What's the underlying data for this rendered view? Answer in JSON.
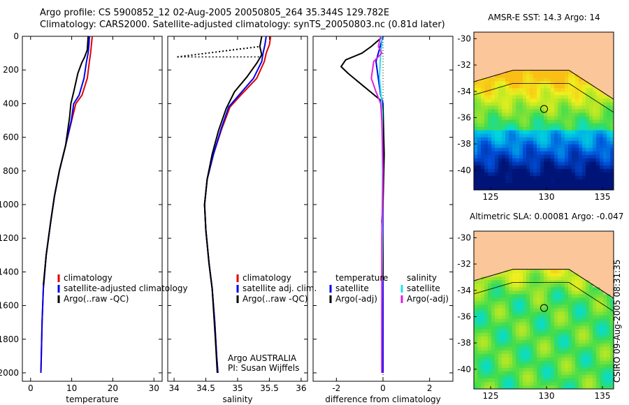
{
  "title_line1": "Argo profile: CS 5900852_12 02-Aug-2005 20050805_264 35.344S 129.782E",
  "title_line2": "Climatology: CARS2000. Satellite-adjusted climatology: synTS_20050803.nc (0.81d later)",
  "credit": "CSIRO 09-Aug-2005 08:31:35",
  "colors": {
    "climatology": "#e00000",
    "satellite": "#0000ee",
    "argo": "#000000",
    "salinity_satellite": "#22e0ee",
    "salinity_argo": "#e020e0",
    "land": "#fbc69a"
  },
  "chart_data": [
    {
      "type": "line",
      "id": "temperature",
      "xlabel": "temperature",
      "ylabel": "",
      "xlim": [
        -2,
        32
      ],
      "ylim": [
        2050,
        0
      ],
      "xticks": [
        "0",
        "10",
        "20",
        "30"
      ],
      "xtick_values": [
        0,
        10,
        20,
        30
      ],
      "yticks": [
        "0",
        "200",
        "400",
        "600",
        "800",
        "1000",
        "1200",
        "1400",
        "1600",
        "1800",
        "2000"
      ],
      "ytick_values": [
        0,
        200,
        400,
        600,
        800,
        1000,
        1200,
        1400,
        1600,
        1800,
        2000
      ],
      "legend": [
        "climatology",
        "satellite-adjusted climatology",
        "Argo(..raw -QC)"
      ],
      "series": [
        {
          "name": "climatology",
          "color": "#e00000",
          "x": [
            15.0,
            14.8,
            14.6,
            14.3,
            13.8,
            12.5,
            11.0,
            10.0,
            8.5,
            7.0,
            5.8,
            4.9,
            3.8,
            3.1,
            2.8,
            2.6,
            2.5
          ],
          "y": [
            0,
            50,
            100,
            150,
            250,
            350,
            400,
            500,
            650,
            800,
            950,
            1100,
            1300,
            1500,
            1700,
            1900,
            2000
          ]
        },
        {
          "name": "satellite-adjusted climatology",
          "color": "#0000ee",
          "x": [
            14.3,
            14.2,
            14.0,
            13.6,
            13.0,
            11.8,
            10.5,
            9.9,
            8.5,
            7.0,
            5.8,
            4.9,
            3.8,
            3.1,
            2.8,
            2.6,
            2.5
          ],
          "y": [
            0,
            50,
            100,
            150,
            250,
            350,
            400,
            500,
            650,
            800,
            950,
            1100,
            1300,
            1500,
            1700,
            1900,
            2000
          ]
        },
        {
          "name": "Argo(..raw -QC)",
          "color": "#000000",
          "x": [
            14.0,
            13.8,
            13.2,
            12.4,
            11.5,
            10.5,
            9.8,
            9.5,
            8.5,
            7.0,
            5.8,
            4.9,
            3.8,
            3.1
          ],
          "y": [
            0,
            80,
            120,
            160,
            220,
            330,
            400,
            480,
            650,
            800,
            950,
            1100,
            1300,
            1480
          ]
        }
      ]
    },
    {
      "type": "line",
      "id": "salinity",
      "xlabel": "salinity",
      "ylabel": "",
      "xlim": [
        33.9,
        36.1
      ],
      "ylim": [
        2050,
        0
      ],
      "xticks": [
        "34",
        "34.5",
        "35",
        "35.5",
        "36"
      ],
      "xtick_values": [
        34,
        34.5,
        35,
        35.5,
        36
      ],
      "legend": [
        "climatology",
        "satellite adj. clim.",
        "Argo(..raw -QC)"
      ],
      "annotations": [
        "Argo AUSTRALIA",
        "PI: Susan Wijffels"
      ],
      "series": [
        {
          "name": "climatology",
          "color": "#e00000",
          "x": [
            35.52,
            35.5,
            35.45,
            35.42,
            35.3,
            35.05,
            34.88,
            34.75,
            34.62,
            34.52,
            34.48,
            34.5,
            34.55,
            34.6,
            34.64,
            34.67,
            34.69
          ],
          "y": [
            0,
            50,
            100,
            150,
            250,
            350,
            420,
            550,
            700,
            850,
            1000,
            1150,
            1350,
            1500,
            1700,
            1900,
            2000
          ]
        },
        {
          "name": "satellite adj. clim.",
          "color": "#0000ee",
          "x": [
            35.45,
            35.43,
            35.4,
            35.38,
            35.25,
            35.02,
            34.86,
            34.74,
            34.62,
            34.52,
            34.48,
            34.5,
            34.55,
            34.6,
            34.64,
            34.67,
            34.69
          ],
          "y": [
            0,
            50,
            100,
            150,
            250,
            350,
            420,
            550,
            700,
            850,
            1000,
            1150,
            1350,
            1500,
            1700,
            1900,
            2000
          ]
        },
        {
          "name": "Argo(..raw -QC)",
          "color": "#000000",
          "x": [
            35.38,
            35.35,
            35.38,
            35.3,
            35.15,
            34.95,
            34.82,
            34.7,
            34.6,
            34.52,
            34.48,
            34.5,
            34.55,
            34.6,
            34.65,
            34.68
          ],
          "y": [
            0,
            60,
            110,
            160,
            240,
            330,
            430,
            560,
            700,
            850,
            1000,
            1150,
            1350,
            1500,
            1800,
            2000
          ]
        }
      ]
    },
    {
      "type": "line",
      "id": "difference",
      "xlabel": "difference from climatology",
      "ylabel": "",
      "xlim": [
        -3,
        3
      ],
      "ylim": [
        2050,
        0
      ],
      "xticks": [
        "-2",
        "0",
        "2"
      ],
      "xtick_values": [
        -2,
        0,
        2
      ],
      "legend_headers": [
        "temperature",
        "salinity"
      ],
      "legend": [
        "satellite",
        "Argo(-adj)",
        "satellite",
        "Argo(-adj)"
      ],
      "series": [
        {
          "name": "satellite",
          "color": "#0000ee",
          "x": [
            0.0,
            -0.1,
            -0.2,
            -0.3,
            -0.2,
            -0.1,
            0.0,
            0.0,
            0.0,
            0.0,
            0.0
          ],
          "y": [
            0,
            50,
            100,
            150,
            250,
            350,
            400,
            600,
            1000,
            1500,
            2000
          ]
        },
        {
          "name": "Argo(-adj)",
          "color": "#000000",
          "x": [
            0.0,
            -0.5,
            -0.9,
            -1.6,
            -1.8,
            -1.5,
            -0.8,
            -0.1,
            0.0,
            0.05,
            0.0,
            -0.05,
            0.0,
            0.0
          ],
          "y": [
            0,
            60,
            100,
            140,
            180,
            220,
            300,
            380,
            420,
            700,
            1000,
            1100,
            1200,
            1450
          ]
        },
        {
          "name": "satellite",
          "color": "#22e0ee",
          "x": [
            -0.05,
            -0.05,
            -0.1,
            -0.12,
            -0.15,
            -0.08,
            -0.03,
            -0.02,
            -0.02,
            -0.05,
            -0.06
          ],
          "y": [
            0,
            50,
            100,
            150,
            250,
            350,
            450,
            800,
            1200,
            1600,
            2000
          ]
        },
        {
          "name": "Argo(-adj)",
          "color": "#e020e0",
          "x": [
            -0.1,
            -0.2,
            -0.05,
            -0.4,
            -0.5,
            -0.3,
            -0.1,
            -0.05,
            0.0,
            -0.05,
            -0.05,
            -0.05
          ],
          "y": [
            0,
            60,
            100,
            150,
            250,
            330,
            400,
            500,
            800,
            1200,
            1600,
            2000
          ]
        }
      ]
    },
    {
      "type": "heatmap",
      "id": "sst-map",
      "title": "AMSR-E SST: 14.3 Argo: 14",
      "xlim": [
        123.5,
        136
      ],
      "ylim": [
        -41.5,
        -29.5
      ],
      "xticks": [
        "125",
        "130",
        "135"
      ],
      "xtick_values": [
        125,
        130,
        135
      ],
      "yticks": [
        "-30",
        "-32",
        "-34",
        "-36",
        "-38",
        "-40"
      ],
      "ytick_values": [
        -30,
        -32,
        -34,
        -36,
        -38,
        -40
      ],
      "marker": {
        "lon": 129.782,
        "lat": -35.344
      }
    },
    {
      "type": "heatmap",
      "id": "sla-map",
      "title": "Altimetric SLA: 0.00081 Argo: -0.047",
      "xlim": [
        123.5,
        136
      ],
      "ylim": [
        -41.5,
        -29.5
      ],
      "xticks": [
        "125",
        "130",
        "135"
      ],
      "xtick_values": [
        125,
        130,
        135
      ],
      "yticks": [
        "-30",
        "-32",
        "-34",
        "-36",
        "-38",
        "-40"
      ],
      "ytick_values": [
        -30,
        -32,
        -34,
        -36,
        -38,
        -40
      ],
      "marker": {
        "lon": 129.782,
        "lat": -35.344
      }
    }
  ]
}
